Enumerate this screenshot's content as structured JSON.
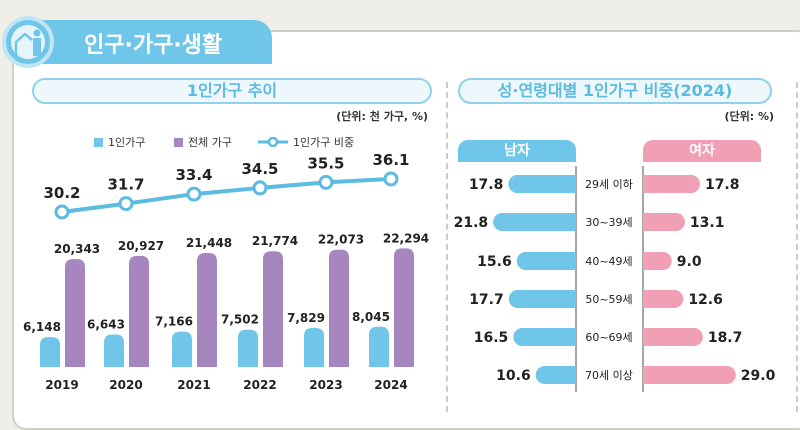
{
  "header": {
    "title": "인구·가구·생활",
    "icon": "home-person-icon"
  },
  "colors": {
    "blue": "#6fc6e8",
    "purple": "#a686be",
    "pink": "#f19fb5",
    "line": "#5bbbe0"
  },
  "chart_data": [
    {
      "type": "bar+line",
      "title": "1인가구 추이",
      "unit_note": "(단위: 천 가구, %)",
      "categories": [
        "2019",
        "2020",
        "2021",
        "2022",
        "2023",
        "2024"
      ],
      "legend": [
        "1인가구",
        "전체 가구",
        "1인가구 비중"
      ],
      "series": [
        {
          "name": "1인가구",
          "type": "bar",
          "values": [
            6148,
            6643,
            7166,
            7502,
            7829,
            8045
          ],
          "labels": [
            "6,148",
            "6,643",
            "7,166",
            "7,502",
            "7,829",
            "8,045"
          ]
        },
        {
          "name": "전체 가구",
          "type": "bar",
          "values": [
            20343,
            20927,
            21448,
            21774,
            22073,
            22294
          ],
          "labels": [
            "20,343",
            "20,927",
            "21,448",
            "21,774",
            "22,073",
            "22,294"
          ]
        },
        {
          "name": "1인가구 비중",
          "type": "line",
          "values": [
            30.2,
            31.7,
            33.4,
            34.5,
            35.5,
            36.1
          ],
          "labels": [
            "30.2",
            "31.7",
            "33.4",
            "34.5",
            "35.5",
            "36.1"
          ]
        }
      ]
    },
    {
      "type": "bar",
      "orientation": "horizontal-butterfly",
      "title": "성·연령대별 1인가구 비중(2024)",
      "unit_note": "(단위: %)",
      "categories": [
        "29세 이하",
        "30~39세",
        "40~49세",
        "50~59세",
        "60~69세",
        "70세 이상"
      ],
      "series": [
        {
          "name": "남자",
          "values": [
            17.8,
            21.8,
            15.6,
            17.7,
            16.5,
            10.6
          ],
          "labels": [
            "17.8",
            "21.8",
            "15.6",
            "17.7",
            "16.5",
            "10.6"
          ]
        },
        {
          "name": "여자",
          "values": [
            17.8,
            13.1,
            9.0,
            12.6,
            18.7,
            29.0
          ],
          "labels": [
            "17.8",
            "13.1",
            "9.0",
            "12.6",
            "18.7",
            "29.0"
          ]
        }
      ]
    }
  ]
}
